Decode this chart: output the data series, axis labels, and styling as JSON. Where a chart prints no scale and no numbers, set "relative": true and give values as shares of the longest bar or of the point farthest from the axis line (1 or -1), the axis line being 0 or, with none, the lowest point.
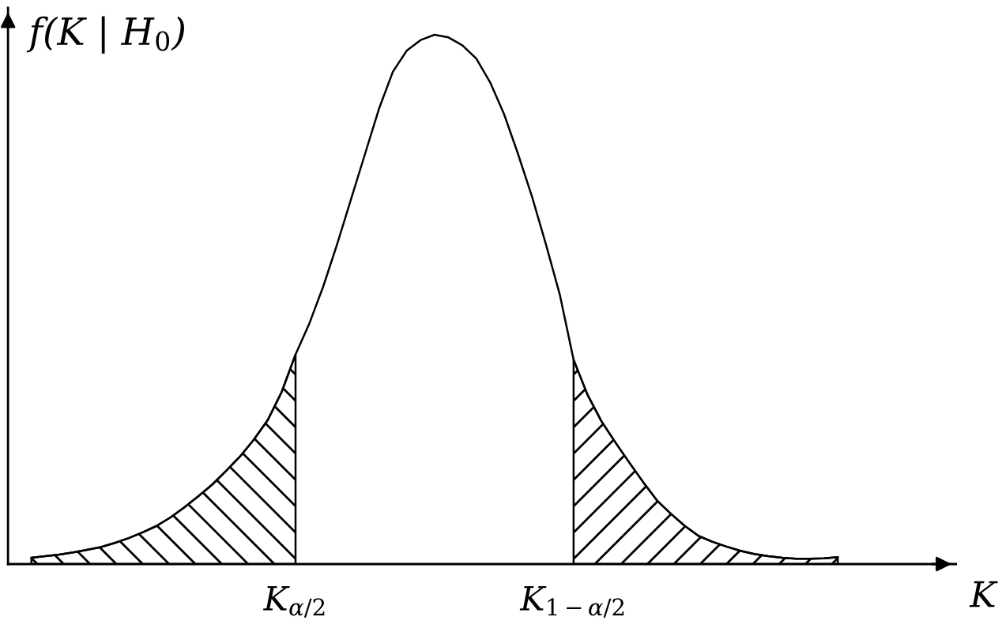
{
  "chart_data": {
    "type": "line",
    "relative": true,
    "xlabel": "K",
    "ylabel": "f(K | H$_{0}$)",
    "grid": false,
    "legend": false,
    "tick_labels": "x",
    "categories": [
      null,
      null,
      null,
      null,
      null,
      null,
      null,
      null,
      null,
      null,
      null,
      null,
      null,
      null,
      null,
      null,
      null,
      null,
      null,
      "K$_{α/2}$",
      null,
      null,
      null,
      null,
      null,
      null,
      null,
      null,
      null,
      null,
      null,
      null,
      null,
      null,
      null,
      null,
      null,
      null,
      null,
      "K$_{1−α/2}$",
      null,
      null,
      null,
      null,
      null,
      null,
      null,
      null,
      null,
      null,
      null,
      null,
      null,
      null,
      null,
      null,
      null,
      null,
      null
    ],
    "series": [
      {
        "color": "#000000",
        "values": [
          0.012,
          0.015,
          0.018,
          0.022,
          0.027,
          0.032,
          0.04,
          0.049,
          0.06,
          0.072,
          0.088,
          0.107,
          0.128,
          0.15,
          0.176,
          0.203,
          0.235,
          0.272,
          0.325,
          0.396,
          0.455,
          0.525,
          0.605,
          0.69,
          0.775,
          0.86,
          0.93,
          0.97,
          0.99,
          1.0,
          0.995,
          0.98,
          0.955,
          0.91,
          0.85,
          0.775,
          0.695,
          0.605,
          0.51,
          0.386,
          0.32,
          0.27,
          0.23,
          0.192,
          0.155,
          0.12,
          0.095,
          0.072,
          0.053,
          0.042,
          0.033,
          0.025,
          0.019,
          0.015,
          0.012,
          0.01,
          0.01,
          0.011,
          0.013
        ]
      },
      {
        "type": "area",
        "color": "#000000",
        "values": [
          0.012,
          0.015,
          0.018,
          0.022,
          0.027,
          0.032,
          0.04,
          0.049,
          0.06,
          0.072,
          0.088,
          0.107,
          0.128,
          0.15,
          0.176,
          0.203,
          0.235,
          0.272,
          0.325,
          0.396,
          null,
          null,
          null,
          null,
          null,
          null,
          null,
          null,
          null,
          null,
          null,
          null,
          null,
          null,
          null,
          null,
          null,
          null,
          null,
          null,
          null,
          null,
          null,
          null,
          null,
          null,
          null,
          null,
          null,
          null,
          null,
          null,
          null,
          null,
          null,
          null,
          null,
          null,
          null
        ]
      },
      {
        "type": "area",
        "color": "#000000",
        "values": [
          null,
          null,
          null,
          null,
          null,
          null,
          null,
          null,
          null,
          null,
          null,
          null,
          null,
          null,
          null,
          null,
          null,
          null,
          null,
          null,
          null,
          null,
          null,
          null,
          null,
          null,
          null,
          null,
          null,
          null,
          null,
          null,
          null,
          null,
          null,
          null,
          null,
          null,
          null,
          0.386,
          0.32,
          0.27,
          0.23,
          0.192,
          0.155,
          0.12,
          0.095,
          0.072,
          0.053,
          0.042,
          0.033,
          0.025,
          0.019,
          0.015,
          0.012,
          0.01,
          0.01,
          0.011,
          0.013
        ]
      }
    ]
  }
}
